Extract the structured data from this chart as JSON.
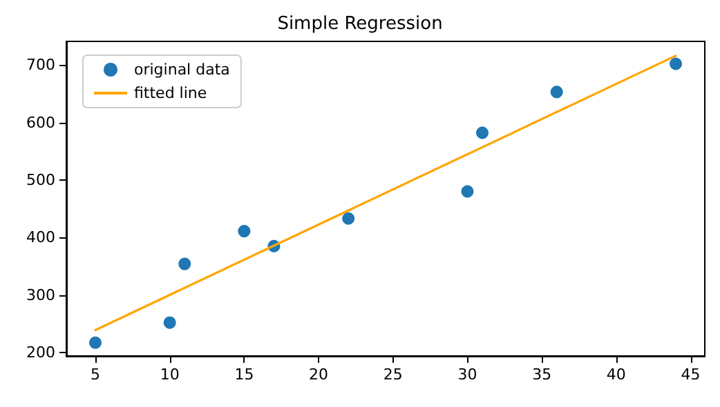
{
  "chart_data": {
    "type": "scatter",
    "title": "Simple Regression",
    "legend": "top left",
    "grid": false,
    "xlim": [
      3.05,
      45.95
    ],
    "xticks": [
      5,
      10,
      15,
      20,
      25,
      30,
      35,
      40,
      45
    ],
    "ylim": [
      194,
      741
    ],
    "yticks": [
      200,
      300,
      400,
      500,
      600,
      700
    ],
    "series": [
      {
        "name": "original data",
        "color": "#1f77b4",
        "marker": "circle",
        "x": [
          5,
          10,
          11,
          15,
          17,
          22,
          30,
          31,
          36,
          44
        ],
        "values": [
          217,
          252,
          354,
          411,
          385,
          433,
          480,
          582,
          653,
          702
        ]
      },
      {
        "name": "fitted line",
        "type": "line",
        "color": "#ffa500",
        "marker": "none",
        "line_style": "solid",
        "x": [
          5,
          44
        ],
        "values": [
          239,
          716
        ]
      }
    ]
  }
}
